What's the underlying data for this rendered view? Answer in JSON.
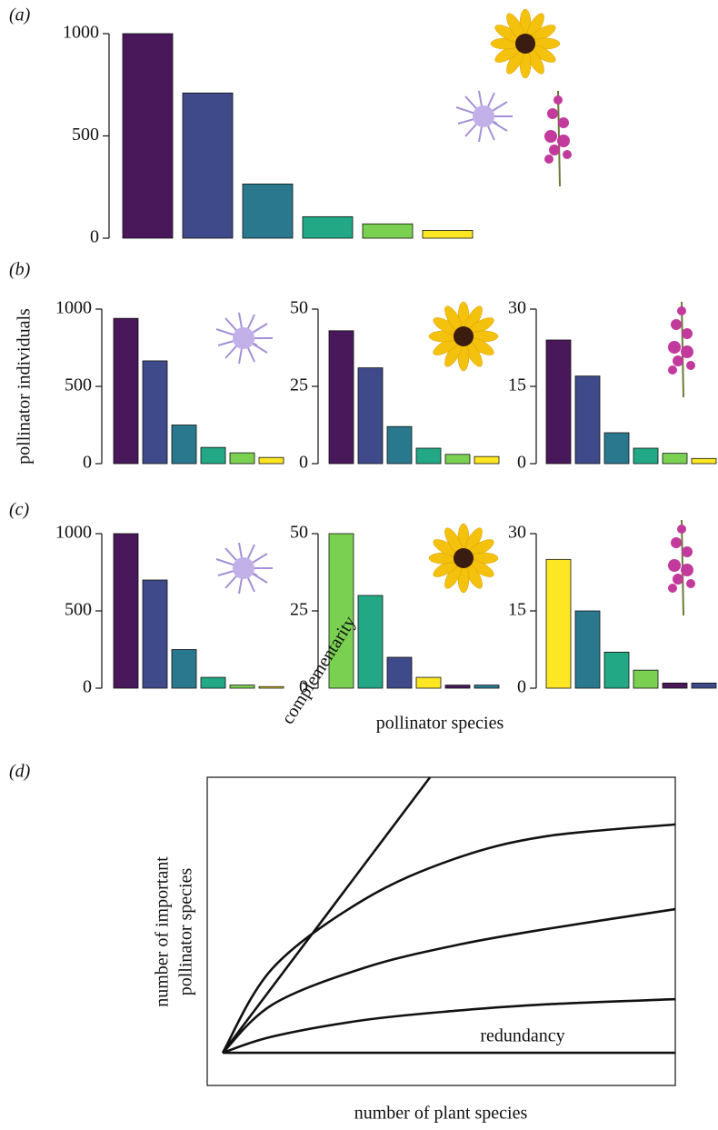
{
  "chart_data": [
    {
      "type": "bar",
      "panel": "(a)",
      "ylim": [
        0,
        1000
      ],
      "yticks": [
        0,
        500,
        1000
      ],
      "values": [
        1000,
        710,
        265,
        105,
        70,
        38
      ],
      "colors": [
        "#48185a",
        "#3e4a89",
        "#2a788e",
        "#22a884",
        "#7ad151",
        "#fde725"
      ]
    },
    {
      "type": "bar",
      "panel": "(b)",
      "ylabel": "pollinator individuals",
      "ylim": [
        0,
        1000
      ],
      "yticks": [
        0,
        500,
        1000
      ],
      "values": [
        940,
        665,
        250,
        105,
        70,
        40
      ],
      "colors": [
        "#48185a",
        "#3e4a89",
        "#2a788e",
        "#22a884",
        "#7ad151",
        "#fde725"
      ]
    },
    {
      "type": "bar",
      "ylim": [
        0,
        50
      ],
      "yticks": [
        0,
        25,
        50
      ],
      "values": [
        43,
        31,
        12,
        5,
        3,
        2.3
      ],
      "colors": [
        "#48185a",
        "#3e4a89",
        "#2a788e",
        "#22a884",
        "#7ad151",
        "#fde725"
      ]
    },
    {
      "type": "bar",
      "ylim": [
        0,
        30
      ],
      "yticks": [
        0,
        15,
        30
      ],
      "values": [
        24,
        17,
        6,
        3,
        2,
        1
      ],
      "colors": [
        "#48185a",
        "#3e4a89",
        "#2a788e",
        "#22a884",
        "#7ad151",
        "#fde725"
      ]
    },
    {
      "type": "bar",
      "panel": "(c)",
      "ylim": [
        0,
        1000
      ],
      "yticks": [
        0,
        500,
        1000
      ],
      "values": [
        1000,
        700,
        250,
        70,
        20,
        10
      ],
      "colors": [
        "#48185a",
        "#3e4a89",
        "#2a788e",
        "#22a884",
        "#7ad151",
        "#fde725"
      ]
    },
    {
      "type": "bar",
      "xlabel": "pollinator species",
      "ylim": [
        0,
        50
      ],
      "yticks": [
        0,
        25,
        50
      ],
      "values": [
        50,
        30,
        10,
        3.5,
        1,
        1
      ],
      "colors": [
        "#7ad151",
        "#22a884",
        "#3e4a89",
        "#fde725",
        "#48185a",
        "#2a788e"
      ]
    },
    {
      "type": "bar",
      "ylim": [
        0,
        30
      ],
      "yticks": [
        0,
        15,
        30
      ],
      "values": [
        25,
        15,
        7,
        3.5,
        1,
        1
      ],
      "colors": [
        "#fde725",
        "#2a788e",
        "#22a884",
        "#7ad151",
        "#48185a",
        "#3e4a89"
      ]
    },
    {
      "type": "line",
      "panel": "(d)",
      "xlabel": "number of plant species",
      "ylabel": [
        "number of important",
        "pollinator species"
      ],
      "annotations": [
        "complementarity",
        "redundancy"
      ],
      "xlim": [
        0,
        10
      ],
      "ylim": [
        0,
        10
      ],
      "series": [
        {
          "color": "#111111",
          "x": [
            0.33,
            4.76
          ],
          "values": [
            1.06,
            10
          ]
        },
        {
          "color": "#111111",
          "x": [
            0.33,
            1.4,
            3.34,
            5.28,
            7.22,
            10
          ],
          "values": [
            1.06,
            3.81,
            6.02,
            7.35,
            8.08,
            8.47
          ]
        },
        {
          "color": "#111111",
          "x": [
            0.33,
            1.4,
            3.34,
            5.28,
            7.22,
            10
          ],
          "values": [
            1.06,
            2.63,
            3.81,
            4.54,
            5.07,
            5.72
          ]
        },
        {
          "color": "#111111",
          "x": [
            0.33,
            1.4,
            3.34,
            5.28,
            7.22,
            10
          ],
          "values": [
            1.06,
            1.59,
            2.12,
            2.42,
            2.63,
            2.8
          ]
        },
        {
          "color": "#111111",
          "x": [
            0.33,
            10
          ],
          "values": [
            1.06,
            1.06
          ]
        }
      ]
    }
  ]
}
